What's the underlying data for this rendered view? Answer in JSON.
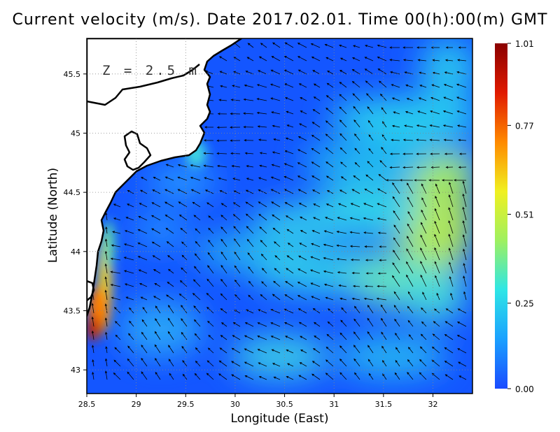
{
  "title": "Current velocity (m/s). Date 2017.02.01. Time 00(h):00(m) GMT",
  "depth_label": "Z = 2.5 m",
  "xlabel": "Longitude (East)",
  "ylabel": "Latitude (North)",
  "map": {
    "lon_range": [
      28.5,
      32.4
    ],
    "lat_range": [
      42.8,
      45.8
    ],
    "x_ticks": [
      "28.5",
      "29",
      "29.5",
      "30",
      "30.5",
      "31",
      "31.5",
      "32"
    ],
    "y_ticks": [
      "43",
      "43.5",
      "44",
      "44.5",
      "45",
      "45.5"
    ],
    "grid": "dotted"
  },
  "colorbar": {
    "ticks": [
      "1.01",
      "0.77",
      "0.51",
      "0.25",
      "0.00"
    ],
    "min": 0.0,
    "max": 1.01,
    "colors": [
      "#1a4bff",
      "#1aa0ff",
      "#2ee6e6",
      "#9ef060",
      "#f0f020",
      "#ff8a00",
      "#e01a00",
      "#8a0000"
    ]
  }
}
